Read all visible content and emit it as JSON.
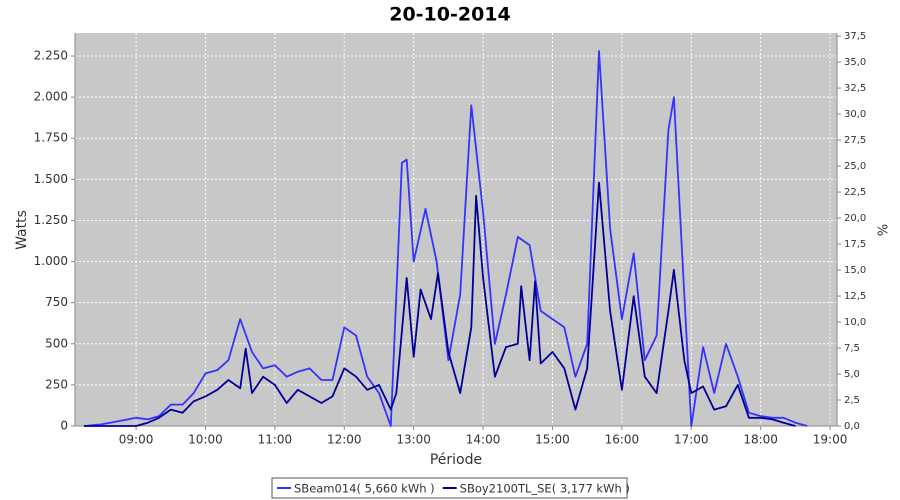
{
  "chart_data": {
    "type": "line",
    "title": "20-10-2014",
    "xlabel": "Période",
    "ylabel": "Watts",
    "y2label": "%",
    "xlim": [
      8.12,
      19.1
    ],
    "xticks": [
      {
        "value": 9,
        "label": "09:00"
      },
      {
        "value": 10,
        "label": "10:00"
      },
      {
        "value": 11,
        "label": "11:00"
      },
      {
        "value": 12,
        "label": "12:00"
      },
      {
        "value": 13,
        "label": "13:00"
      },
      {
        "value": 14,
        "label": "14:00"
      },
      {
        "value": 15,
        "label": "15:00"
      },
      {
        "value": 16,
        "label": "16:00"
      },
      {
        "value": 17,
        "label": "17:00"
      },
      {
        "value": 18,
        "label": "18:00"
      },
      {
        "value": 19,
        "label": "19:00"
      }
    ],
    "ylim": [
      0,
      2390
    ],
    "yticks": [
      0,
      250,
      500,
      750,
      {
        "value": 1000,
        "label": "1.000"
      },
      {
        "value": 1250,
        "label": "1.250"
      },
      {
        "value": 1500,
        "label": "1.500"
      },
      {
        "value": 1750,
        "label": "1.750"
      },
      {
        "value": 2000,
        "label": "2.000"
      },
      {
        "value": 2250,
        "label": "2.250"
      }
    ],
    "y2lim": [
      0,
      37.8
    ],
    "y2ticks": [
      {
        "value": 0,
        "label": "0,0"
      },
      {
        "value": 2.5,
        "label": "2,5"
      },
      {
        "value": 5,
        "label": "5,0"
      },
      {
        "value": 7.5,
        "label": "7,5"
      },
      {
        "value": 10,
        "label": "10,0"
      },
      {
        "value": 12.5,
        "label": "12,5"
      },
      {
        "value": 15,
        "label": "15,0"
      },
      {
        "value": 17.5,
        "label": "17,5"
      },
      {
        "value": 20,
        "label": "20,0"
      },
      {
        "value": 22.5,
        "label": "22,5"
      },
      {
        "value": 25,
        "label": "25,0"
      },
      {
        "value": 27.5,
        "label": "27,5"
      },
      {
        "value": 30,
        "label": "30,0"
      },
      {
        "value": 32.5,
        "label": "32,5"
      },
      {
        "value": 35,
        "label": "35,0"
      },
      {
        "value": 37.5,
        "label": "37,5"
      }
    ],
    "grid": true,
    "legend": "bottom",
    "series": [
      {
        "name": "SBeam014( 5,660 kWh )",
        "color": "#3333ff",
        "x": [
          8.25,
          8.5,
          8.75,
          9.0,
          9.17,
          9.33,
          9.5,
          9.67,
          9.83,
          10.0,
          10.17,
          10.33,
          10.5,
          10.67,
          10.83,
          11.0,
          11.17,
          11.33,
          11.5,
          11.67,
          11.83,
          12.0,
          12.17,
          12.33,
          12.5,
          12.67,
          12.83,
          12.9,
          13.0,
          13.17,
          13.33,
          13.5,
          13.67,
          13.83,
          14.0,
          14.17,
          14.33,
          14.5,
          14.67,
          14.83,
          15.0,
          15.17,
          15.33,
          15.5,
          15.67,
          15.83,
          16.0,
          16.17,
          16.33,
          16.5,
          16.67,
          16.75,
          16.9,
          17.0,
          17.17,
          17.33,
          17.5,
          17.67,
          17.83,
          18.0,
          18.17,
          18.33,
          18.5,
          18.67
        ],
        "values": [
          0,
          10,
          30,
          50,
          40,
          60,
          130,
          130,
          200,
          320,
          340,
          400,
          650,
          450,
          350,
          370,
          300,
          330,
          350,
          280,
          280,
          600,
          550,
          300,
          200,
          0,
          1600,
          1620,
          1000,
          1320,
          1000,
          400,
          800,
          1950,
          1300,
          500,
          800,
          1150,
          1100,
          700,
          650,
          600,
          300,
          500,
          2280,
          1200,
          650,
          1050,
          400,
          550,
          1800,
          2000,
          800,
          0,
          480,
          200,
          500,
          300,
          80,
          60,
          50,
          50,
          20,
          0
        ]
      },
      {
        "name": "SBoy2100TL_SE( 3,177 kWh )",
        "color": "#000099",
        "x": [
          8.25,
          8.75,
          9.0,
          9.17,
          9.33,
          9.5,
          9.67,
          9.83,
          10.0,
          10.17,
          10.33,
          10.5,
          10.58,
          10.67,
          10.83,
          11.0,
          11.17,
          11.33,
          11.5,
          11.67,
          11.83,
          12.0,
          12.17,
          12.33,
          12.5,
          12.67,
          12.75,
          12.9,
          13.0,
          13.1,
          13.25,
          13.35,
          13.5,
          13.67,
          13.83,
          13.9,
          14.0,
          14.17,
          14.33,
          14.5,
          14.55,
          14.67,
          14.75,
          14.83,
          15.0,
          15.17,
          15.33,
          15.5,
          15.67,
          15.83,
          16.0,
          16.17,
          16.33,
          16.5,
          16.67,
          16.75,
          16.9,
          17.0,
          17.17,
          17.33,
          17.5,
          17.67,
          17.83,
          18.0,
          18.17,
          18.33,
          18.5
        ],
        "values": [
          0,
          0,
          0,
          20,
          50,
          100,
          80,
          150,
          180,
          220,
          280,
          230,
          470,
          200,
          300,
          250,
          140,
          220,
          180,
          140,
          180,
          350,
          300,
          220,
          250,
          100,
          200,
          900,
          420,
          830,
          650,
          930,
          450,
          200,
          600,
          1400,
          900,
          300,
          480,
          500,
          850,
          400,
          880,
          380,
          450,
          350,
          100,
          350,
          1480,
          700,
          220,
          790,
          300,
          200,
          700,
          950,
          400,
          200,
          240,
          100,
          120,
          250,
          50,
          50,
          40,
          20,
          0
        ]
      }
    ]
  }
}
